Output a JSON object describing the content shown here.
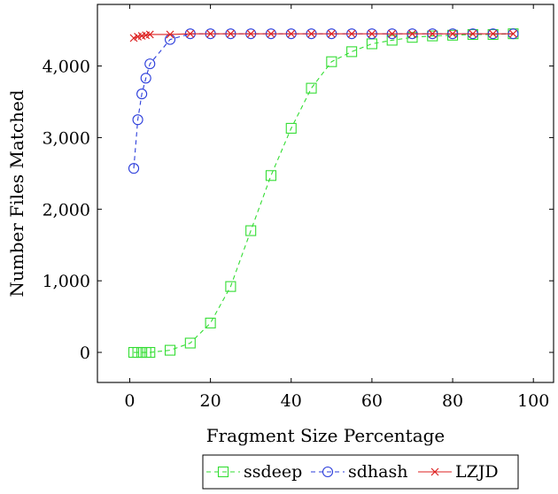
{
  "chart_data": {
    "type": "line",
    "xlabel": "Fragment Size Percentage",
    "ylabel": "Number Files Matched",
    "xlim": [
      -8,
      105
    ],
    "ylim": [
      -420,
      4860
    ],
    "x_ticks": [
      0,
      20,
      40,
      60,
      80,
      100
    ],
    "x_tick_labels": [
      "0",
      "20",
      "40",
      "60",
      "80",
      "100"
    ],
    "y_ticks": [
      0,
      1000,
      2000,
      3000,
      4000
    ],
    "y_tick_labels": [
      "0",
      "1,000",
      "2,000",
      "3,000",
      "4,000"
    ],
    "grid": false,
    "legend_position": "bottom",
    "series": [
      {
        "name": "ssdeep",
        "color": "#33dd33",
        "line_style": "dashed",
        "marker": "square",
        "x": [
          1,
          2,
          3,
          4,
          5,
          10,
          15,
          20,
          25,
          30,
          35,
          40,
          45,
          50,
          55,
          60,
          65,
          70,
          75,
          80,
          85,
          90,
          95
        ],
        "y": [
          0,
          0,
          0,
          0,
          0,
          30,
          130,
          410,
          920,
          1700,
          2470,
          3130,
          3690,
          4060,
          4200,
          4310,
          4360,
          4400,
          4420,
          4430,
          4440,
          4440,
          4450
        ]
      },
      {
        "name": "sdhash",
        "color": "#2b3ddb",
        "line_style": "dashed",
        "marker": "circle",
        "x": [
          1,
          2,
          3,
          4,
          5,
          10,
          15,
          20,
          25,
          30,
          35,
          40,
          45,
          50,
          55,
          60,
          65,
          70,
          75,
          80,
          85,
          90,
          95
        ],
        "y": [
          2570,
          3250,
          3610,
          3830,
          4030,
          4370,
          4450,
          4450,
          4450,
          4450,
          4450,
          4450,
          4450,
          4450,
          4450,
          4450,
          4450,
          4450,
          4450,
          4450,
          4450,
          4450,
          4450
        ]
      },
      {
        "name": "LZJD",
        "color": "#dd2222",
        "line_style": "solid",
        "marker": "cross",
        "x": [
          1,
          2,
          3,
          4,
          5,
          10,
          15,
          20,
          25,
          30,
          35,
          40,
          45,
          50,
          55,
          60,
          65,
          70,
          75,
          80,
          85,
          90,
          95
        ],
        "y": [
          4390,
          4410,
          4420,
          4430,
          4440,
          4440,
          4450,
          4450,
          4450,
          4450,
          4450,
          4450,
          4450,
          4450,
          4450,
          4450,
          4450,
          4450,
          4450,
          4450,
          4450,
          4450,
          4450
        ]
      }
    ]
  }
}
